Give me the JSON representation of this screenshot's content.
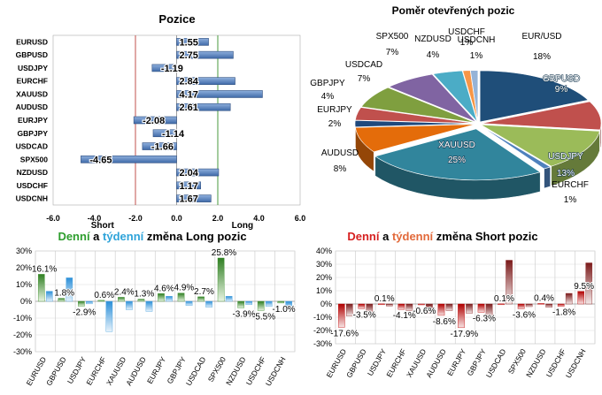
{
  "chart_data": [
    {
      "type": "bar",
      "title": "Pozice",
      "categories": [
        "EURUSD",
        "GBPUSD",
        "USDJPY",
        "EURCHF",
        "XAUUSD",
        "AUDUSD",
        "EURJPY",
        "GBPJPY",
        "USDCAD",
        "SPX500",
        "NZDUSD",
        "USDCHF",
        "USDCNH"
      ],
      "values": [
        1.55,
        2.75,
        -1.19,
        2.84,
        4.17,
        2.61,
        -2.08,
        -1.14,
        -1.66,
        -4.65,
        2.04,
        1.17,
        1.67
      ],
      "value_labels": [
        "1.55",
        "2.75",
        "-1.19",
        "2.84",
        "4.17",
        "2.61",
        "-2.08",
        "-1.14",
        "-1.66",
        "-4.65",
        "2.04",
        "1.17",
        "1.67"
      ],
      "xlim": [
        -6,
        6
      ],
      "xticks": [
        "-6.0",
        "-4.0",
        "-2.0",
        "0.0",
        "2.0",
        "4.0",
        "6.0"
      ],
      "short_label": "Short",
      "long_label": "Long",
      "colors": {
        "bar": "#5b7fb5",
        "short_line": "#c0504d",
        "long_line": "#4a9a3c"
      }
    },
    {
      "type": "pie",
      "title": "Poměr otevřených pozic",
      "slices": [
        {
          "label": "EUR/USD",
          "value": 18,
          "pct": "18%",
          "color": "#1f4e79"
        },
        {
          "label": "GBPUSD",
          "value": 9,
          "pct": "9%",
          "color": "#c0504d"
        },
        {
          "label": "USDJPY",
          "value": 13,
          "pct": "13%",
          "color": "#9bbb59"
        },
        {
          "label": "EURCHF",
          "value": 1,
          "pct": "1%",
          "color": "#4f81bd"
        },
        {
          "label": "XAUUSD",
          "value": 25,
          "pct": "25%",
          "color": "#31859c"
        },
        {
          "label": "AUDUSD",
          "value": 8,
          "pct": "8%",
          "color": "#e46c0a"
        },
        {
          "label": "EURJPY",
          "value": 2,
          "pct": "2%",
          "color": "#1f497d"
        },
        {
          "label": "GBPJPY",
          "value": 4,
          "pct": "4%",
          "color": "#c0504d"
        },
        {
          "label": "USDCAD",
          "value": 7,
          "pct": "7%",
          "color": "#7f9f3f"
        },
        {
          "label": "SPX500",
          "value": 7,
          "pct": "7%",
          "color": "#8064a2"
        },
        {
          "label": "NZDUSD",
          "value": 4,
          "pct": "4%",
          "color": "#4bacc6"
        },
        {
          "label": "USDCHF",
          "value": 1,
          "pct": "1%",
          "color": "#f79646"
        },
        {
          "label": "USDCNH",
          "value": 1,
          "pct": "1%",
          "color": "#95b3d7"
        }
      ]
    },
    {
      "type": "bar",
      "title_parts": [
        "Denní",
        " a ",
        "týdenní",
        " změna Long pozic"
      ],
      "title_colors": [
        "#2e9e2e",
        "#000000",
        "#2ea3d9",
        "#000000"
      ],
      "categories": [
        "EURUSD",
        "GBPUSD",
        "USDJPY",
        "EURCHF",
        "XAUUSD",
        "AUDUSD",
        "EURJPY",
        "GBPJPY",
        "USDCAD",
        "SPX500",
        "NZDUSD",
        "USDCHF",
        "USDCNH"
      ],
      "series": [
        {
          "values": [
            16.1,
            1.8,
            -2.9,
            0.6,
            2.4,
            1.3,
            4.6,
            4.9,
            2.7,
            25.8,
            -3.9,
            -5.5,
            -1.0
          ],
          "color": "#3a8f2a"
        },
        {
          "values": [
            6.0,
            14.0,
            -1.5,
            -18.0,
            -5.0,
            -6.0,
            3.0,
            -2.5,
            -3.5,
            3.0,
            -2.0,
            -3.0,
            -5.0
          ],
          "color": "#4aa3df"
        }
      ],
      "value_labels": [
        "16.1%",
        "1.8%",
        "-2.9%",
        "0.6%",
        "2.4%",
        "1.3%",
        "4.6%",
        "4.9%",
        "2.7%",
        "25.8%",
        "-3.9%",
        "-5.5%",
        "-1.0%"
      ],
      "ylim": [
        -30,
        30
      ],
      "yticks": [
        "-30%",
        "-20%",
        "-10%",
        "0%",
        "10%",
        "20%",
        "30%"
      ]
    },
    {
      "type": "bar",
      "title_parts": [
        "Denní",
        " a ",
        "týdenní",
        " změna Short pozic"
      ],
      "title_colors": [
        "#d62020",
        "#000000",
        "#e2693a",
        "#000000"
      ],
      "categories": [
        "EURUSD",
        "GBPUSD",
        "USDJPY",
        "EURCHF",
        "XAUUSD",
        "AUDUSD",
        "EURJPY",
        "GBPJPY",
        "USDCAD",
        "SPX500",
        "NZDUSD",
        "USDCHF",
        "USDCNH"
      ],
      "series": [
        {
          "values": [
            -17.6,
            -3.5,
            0.1,
            -4.1,
            -0.6,
            -8.6,
            -17.9,
            -6.3,
            0.1,
            -3.6,
            0.4,
            -1.8,
            9.5
          ],
          "color": "#c00000"
        },
        {
          "values": [
            -9.0,
            -7.0,
            -1.5,
            -5.0,
            -7.0,
            -5.0,
            -7.0,
            -10.0,
            33.0,
            -2.0,
            -2.5,
            8.0,
            31.0
          ],
          "color": "#8b2323"
        }
      ],
      "value_labels": [
        "-17.6%",
        "-3.5%",
        "0.1%",
        "-4.1%",
        "-0.6%",
        "-8.6%",
        "-17.9%",
        "-6.3%",
        "0.1%",
        "-3.6%",
        "0.4%",
        "-1.8%",
        "9.5%"
      ],
      "ylim": [
        -30,
        40
      ],
      "yticks": [
        "-30%",
        "-20%",
        "-10%",
        "0%",
        "10%",
        "20%",
        "30%",
        "40%"
      ]
    }
  ]
}
